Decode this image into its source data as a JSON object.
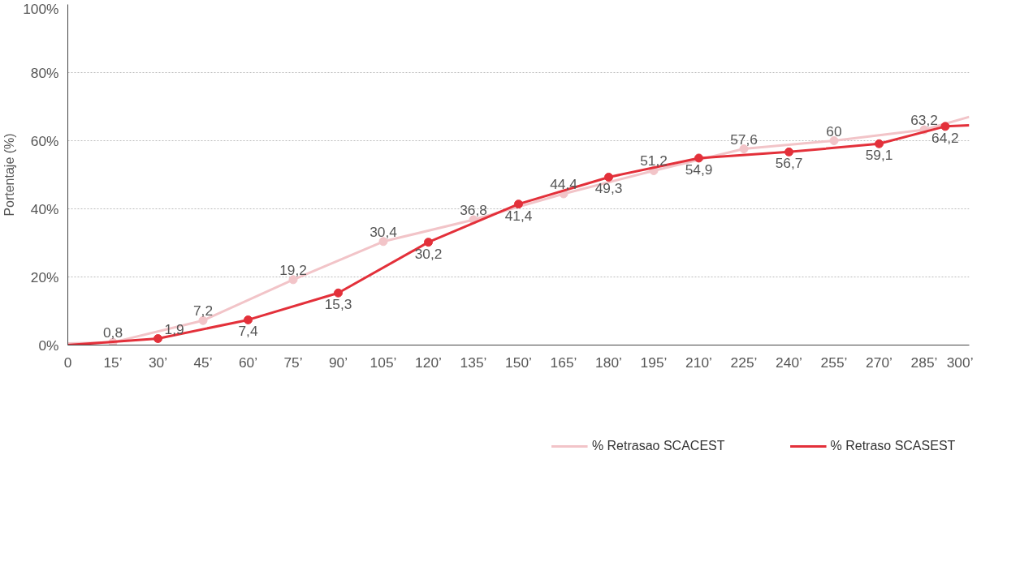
{
  "chart_data": {
    "type": "line",
    "ylabel": "Portentaje (%)",
    "xlim": [
      0,
      300
    ],
    "ylim": [
      0,
      100
    ],
    "xticks": [
      0,
      {
        "value": 15,
        "label": "15’"
      },
      {
        "value": 30,
        "label": "30’"
      },
      {
        "value": 45,
        "label": "45’"
      },
      {
        "value": 60,
        "label": "60’"
      },
      {
        "value": 75,
        "label": "75’"
      },
      {
        "value": 90,
        "label": "90’"
      },
      {
        "value": 105,
        "label": "105’"
      },
      {
        "value": 120,
        "label": "120’"
      },
      {
        "value": 135,
        "label": "135’"
      },
      {
        "value": 150,
        "label": "150’"
      },
      {
        "value": 165,
        "label": "165’"
      },
      {
        "value": 180,
        "label": "180’"
      },
      {
        "value": 195,
        "label": "195’"
      },
      {
        "value": 210,
        "label": "210’"
      },
      {
        "value": 225,
        "label": "225’"
      },
      {
        "value": 240,
        "label": "240’"
      },
      {
        "value": 255,
        "label": "255’"
      },
      {
        "value": 270,
        "label": "270’"
      },
      {
        "value": 285,
        "label": "285’"
      },
      {
        "value": 300,
        "label": "300’"
      }
    ],
    "yticks": [
      {
        "value": 0,
        "label": "0%"
      },
      {
        "value": 20,
        "label": "20%"
      },
      {
        "value": 40,
        "label": "40%"
      },
      {
        "value": 60,
        "label": "60%"
      },
      {
        "value": 80,
        "label": "80%"
      },
      {
        "value": 100,
        "label": "100%"
      }
    ],
    "grid": "y",
    "legend": "bottom",
    "marker": "circle",
    "line_style": "solid",
    "series": [
      {
        "name": "% Retrasao SCACEST",
        "color": "#f2c4c8",
        "x": [
          0,
          15,
          45,
          75,
          105,
          135,
          165,
          195,
          225,
          255,
          285,
          300
        ],
        "values": [
          0.5,
          0.8,
          7.2,
          19.2,
          30.4,
          36.8,
          44.4,
          51.2,
          57.6,
          60,
          63.2,
          67
        ],
        "value_labels": [
          null,
          "0,8",
          "7,2",
          "19,2",
          "30,4",
          "36,8",
          "44,4",
          "51,2",
          "57,6",
          "60",
          "63,2",
          null
        ]
      },
      {
        "name": "% Retraso SCASEST",
        "color": "#e3303a",
        "x": [
          0,
          30,
          60,
          90,
          120,
          150,
          180,
          210,
          240,
          270,
          292,
          300
        ],
        "values": [
          0,
          1.9,
          7.4,
          15.3,
          30.2,
          41.4,
          49.3,
          54.9,
          56.7,
          59.1,
          64.2,
          64.5
        ],
        "value_labels": [
          null,
          "1,9",
          "7,4",
          "15,3",
          "30,2",
          "41,4",
          "49,3",
          "54,9",
          "56,7",
          "59,1",
          "64,2",
          null
        ]
      }
    ]
  }
}
